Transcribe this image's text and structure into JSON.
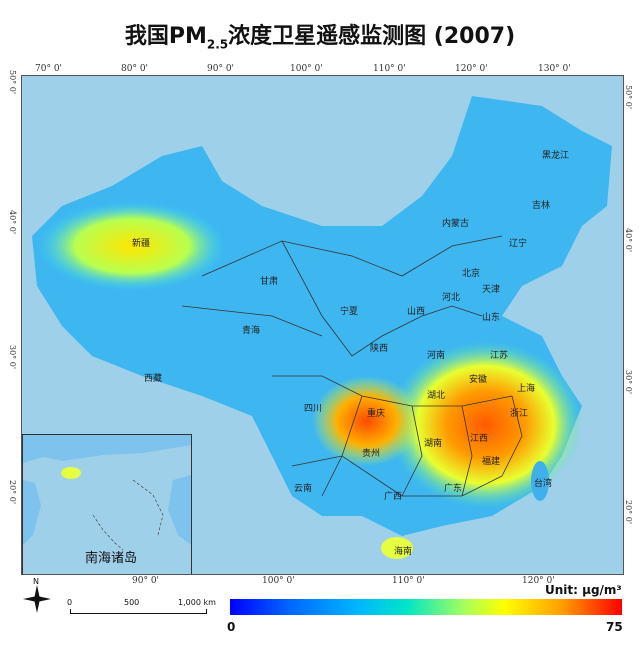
{
  "title": {
    "main": "我国PM",
    "sub": "2.5",
    "rest": "浓度卫星遥感监测图 (2007)"
  },
  "longitudes_top": [
    "70° 0'",
    "80° 0'",
    "90° 0'",
    "100° 0'",
    "110° 0'",
    "120° 0'",
    "130° 0'"
  ],
  "longitudes_bottom": [
    "90° 0'",
    "100° 0'",
    "110° 0'",
    "120° 0'"
  ],
  "latitudes_left": [
    "50° 0'",
    "40° 0'",
    "30° 0'",
    "20° 0'"
  ],
  "latitudes_right": [
    "50° 0'",
    "40° 0'",
    "30° 0'",
    "20° 0'"
  ],
  "provinces": [
    "黑龙江",
    "吉林",
    "辽宁",
    "内蒙古",
    "新疆",
    "甘肃",
    "青海",
    "西藏",
    "宁夏",
    "陕西",
    "山西",
    "河北",
    "北京",
    "天津",
    "山东",
    "河南",
    "江苏",
    "安徽",
    "上海",
    "湖北",
    "浙江",
    "四川",
    "重庆",
    "贵州",
    "湖南",
    "江西",
    "福建",
    "台湾",
    "云南",
    "广西",
    "广东",
    "海南"
  ],
  "inset_label": "南海诸岛",
  "scale": {
    "north": "N",
    "t0": "0",
    "t1": "500",
    "t2": "1,000 km"
  },
  "colorbar": {
    "min": "0",
    "max": "75",
    "unit": "Unit: μg/m³"
  },
  "colors": {
    "low": "#0000ff",
    "mid": "#00e5c8",
    "high": "#ff0000",
    "sea": "#9fd0ea"
  }
}
